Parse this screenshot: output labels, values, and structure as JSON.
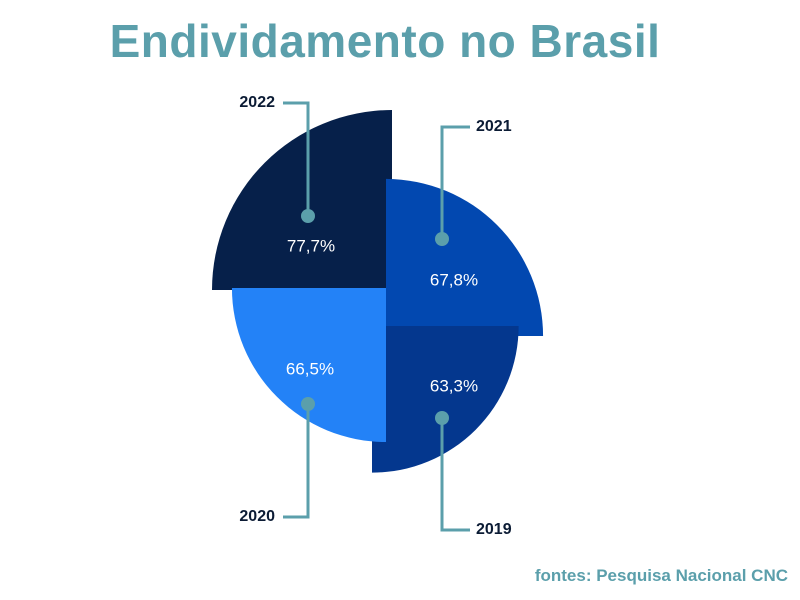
{
  "title": "Endividamento no Brasil",
  "source": "fontes: Pesquisa Nacional CNC",
  "chart_data": {
    "type": "pie",
    "title": "Endividamento no Brasil",
    "categories": [
      "2022",
      "2021",
      "2019",
      "2020"
    ],
    "values": [
      77.7,
      67.8,
      63.3,
      66.5
    ],
    "value_labels": [
      "77,7%",
      "67,8%",
      "63,3%",
      "66,5%"
    ],
    "colors": [
      "#06204a",
      "#0248b0",
      "#04378e",
      "#2382f7"
    ],
    "connector_color": "#5b9fab",
    "style": "exploded quarter sectors, radius scaled by value"
  }
}
